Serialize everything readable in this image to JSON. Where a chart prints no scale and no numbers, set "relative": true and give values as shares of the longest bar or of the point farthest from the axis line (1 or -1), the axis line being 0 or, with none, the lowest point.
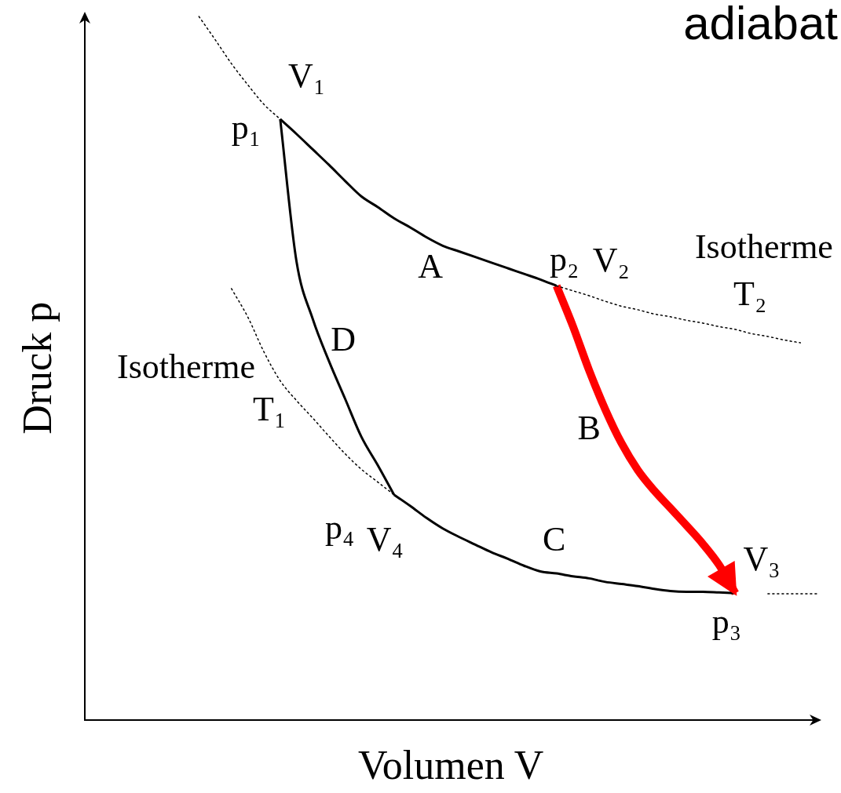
{
  "chart_data": {
    "type": "line",
    "title": "adiabat",
    "xlabel": "Volumen V",
    "ylabel": "Druck p",
    "relative": true,
    "tick_labels": false,
    "categories": [
      null,
      null,
      null,
      null,
      null,
      null,
      null,
      null,
      null,
      null,
      null,
      null,
      null,
      null,
      null,
      null,
      null,
      null,
      null,
      null,
      null,
      null,
      null,
      null,
      null,
      null,
      null,
      null,
      null,
      null,
      null,
      null,
      null,
      null,
      null,
      null,
      null,
      null,
      null,
      null,
      null,
      null,
      null,
      null,
      null,
      null
    ],
    "series": [
      {
        "color": "#000000",
        "line_style": "dotted",
        "values": [
          null,
          null,
          null,
          null,
          null,
          null,
          null,
          1.0,
          0.967,
          0.933,
          0.903,
          0.875,
          0.854,
          null,
          null,
          null,
          null,
          null,
          null,
          null,
          null,
          null,
          null,
          null,
          null,
          null,
          null,
          null,
          null,
          null,
          null,
          null,
          null,
          null,
          null,
          null,
          null,
          null,
          null,
          null,
          null,
          null,
          null,
          null,
          null,
          null
        ]
      },
      {
        "color": "#000000",
        "line_style": "dotted",
        "values": [
          null,
          null,
          null,
          null,
          null,
          null,
          null,
          null,
          null,
          null,
          null,
          null,
          null,
          null,
          null,
          null,
          null,
          null,
          null,
          null,
          null,
          null,
          null,
          null,
          null,
          null,
          null,
          null,
          null,
          0.617,
          0.61,
          0.603,
          0.595,
          0.588,
          0.583,
          0.577,
          0.573,
          0.568,
          0.564,
          0.559,
          0.555,
          0.549,
          0.545,
          0.54,
          0.536,
          null
        ]
      },
      {
        "color": "#000000",
        "line_style": "dotted",
        "values": [
          null,
          null,
          null,
          null,
          null,
          null,
          null,
          null,
          null,
          0.613,
          0.573,
          0.523,
          0.482,
          0.454,
          0.429,
          0.403,
          0.378,
          0.356,
          0.338,
          0.32,
          null,
          null,
          null,
          null,
          null,
          null,
          null,
          null,
          null,
          null,
          null,
          null,
          null,
          null,
          null,
          null,
          null,
          null,
          null,
          null,
          null,
          null,
          null,
          null,
          null,
          null
        ]
      },
      {
        "color": "#000000",
        "line_style": "dotted",
        "values": [
          null,
          null,
          null,
          null,
          null,
          null,
          null,
          null,
          null,
          null,
          null,
          null,
          null,
          null,
          null,
          null,
          null,
          null,
          null,
          null,
          null,
          null,
          null,
          null,
          null,
          null,
          null,
          null,
          null,
          null,
          null,
          null,
          null,
          null,
          null,
          null,
          null,
          null,
          null,
          null,
          null,
          null,
          0.179,
          0.179,
          0.179,
          0.179
        ]
      },
      {
        "color": "#000000",
        "line_style": "solid",
        "values": [
          null,
          null,
          null,
          null,
          null,
          null,
          null,
          null,
          null,
          null,
          null,
          null,
          0.854,
          0.833,
          0.811,
          0.789,
          0.766,
          0.744,
          0.729,
          0.713,
          0.7,
          0.686,
          0.674,
          0.666,
          0.658,
          0.65,
          0.642,
          0.634,
          0.626,
          0.617,
          null,
          null,
          null,
          null,
          null,
          null,
          null,
          null,
          null,
          null,
          null,
          null,
          null,
          null,
          null,
          null
        ]
      },
      {
        "color": "#000000",
        "line_style": "solid",
        "values": [
          null,
          null,
          null,
          null,
          null,
          null,
          null,
          null,
          null,
          null,
          null,
          null,
          0.854,
          0.652,
          0.57,
          0.51,
          0.456,
          0.402,
          0.362,
          0.32,
          null,
          null,
          null,
          null,
          null,
          null,
          null,
          null,
          null,
          null,
          null,
          null,
          null,
          null,
          null,
          null,
          null,
          null,
          null,
          null,
          null,
          null,
          null,
          null,
          null,
          null
        ]
      },
      {
        "color": "#000000",
        "line_style": "solid",
        "values": [
          null,
          null,
          null,
          null,
          null,
          null,
          null,
          null,
          null,
          null,
          null,
          null,
          null,
          null,
          null,
          null,
          null,
          null,
          null,
          0.32,
          0.304,
          0.287,
          0.272,
          0.26,
          0.249,
          0.238,
          0.229,
          0.219,
          0.211,
          0.208,
          0.204,
          0.201,
          0.196,
          0.193,
          0.19,
          0.186,
          0.183,
          0.182,
          0.182,
          0.181,
          0.18,
          null,
          null,
          null,
          null,
          null
        ]
      },
      {
        "color": "#ff0000",
        "line_style": "solid",
        "values": [
          null,
          null,
          null,
          null,
          null,
          null,
          null,
          null,
          null,
          null,
          null,
          null,
          null,
          null,
          null,
          null,
          null,
          null,
          null,
          null,
          null,
          null,
          null,
          null,
          null,
          null,
          null,
          null,
          null,
          0.617,
          0.56,
          0.497,
          0.441,
          0.393,
          0.355,
          0.326,
          0.301,
          0.276,
          0.25,
          0.22,
          0.18,
          null,
          null,
          null,
          null,
          null
        ]
      }
    ],
    "annotations": [
      "V₁",
      "p₁",
      "A",
      "p₂",
      "V₂",
      "Isotherme",
      "T₂",
      "D",
      "Isotherme",
      "T₁",
      "B",
      "p₄",
      "V₄",
      "C",
      "V₃",
      "p₃"
    ]
  }
}
